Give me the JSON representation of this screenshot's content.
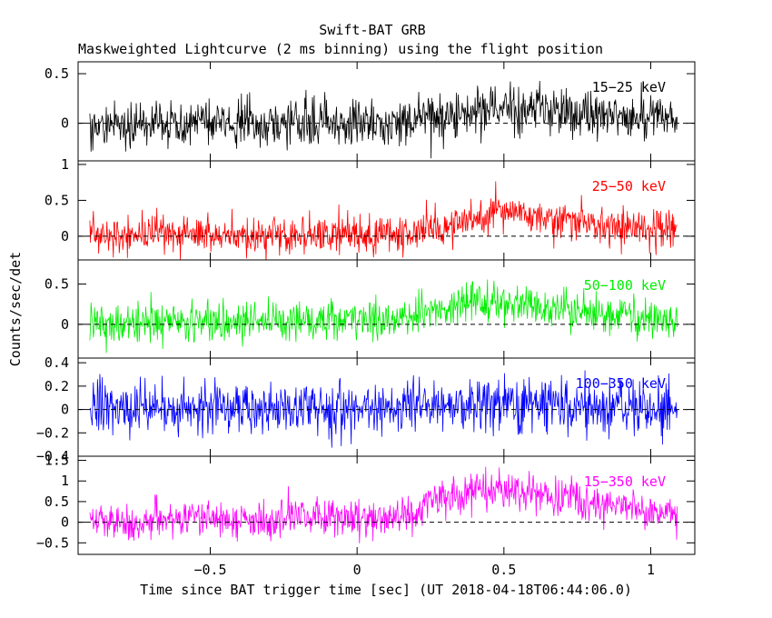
{
  "chart_data": {
    "type": "line",
    "title": "Swift-BAT GRB",
    "subtitle": "Maskweighted Lightcurve (2 ms binning) using the flight position",
    "xlabel": "Time since BAT trigger time [sec] (UT 2018-04-18T06:44:06.0)",
    "ylabel": "Counts/sec/det",
    "xlim": [
      -0.95,
      1.15
    ],
    "x_ticks": [
      {
        "v": -0.5,
        "label": "−0.5"
      },
      {
        "v": 0,
        "label": "0"
      },
      {
        "v": 0.5,
        "label": "0.5"
      },
      {
        "v": 1,
        "label": "1"
      }
    ],
    "x_range_data": [
      -0.91,
      1.09
    ],
    "bin_width": 0.002,
    "grid": false,
    "series": [
      {
        "name": "15−25 keV",
        "color": "#000000",
        "ylim": [
          -0.38,
          0.62
        ],
        "y_ticks": [
          {
            "v": 0,
            "label": "0"
          },
          {
            "v": 0.5,
            "label": "0.5"
          }
        ],
        "profile": [
          [
            -0.91,
            0.0
          ],
          [
            0.1,
            0.0
          ],
          [
            0.3,
            0.08
          ],
          [
            0.5,
            0.14
          ],
          [
            0.75,
            0.1
          ],
          [
            1.09,
            0.05
          ]
        ],
        "noise_sd": 0.12
      },
      {
        "name": "25−50 keV",
        "color": "#ff0000",
        "ylim": [
          -0.33,
          1.05
        ],
        "y_ticks": [
          {
            "v": 0,
            "label": "0"
          },
          {
            "v": 0.5,
            "label": "0.5"
          },
          {
            "v": 1,
            "label": "1"
          }
        ],
        "profile": [
          [
            -0.91,
            0.02
          ],
          [
            0.2,
            0.03
          ],
          [
            0.35,
            0.2
          ],
          [
            0.45,
            0.35
          ],
          [
            0.6,
            0.28
          ],
          [
            0.8,
            0.18
          ],
          [
            1.09,
            0.08
          ]
        ],
        "noise_sd": 0.13
      },
      {
        "name": "50−100 keV",
        "color": "#00ee00",
        "ylim": [
          -0.42,
          0.8
        ],
        "y_ticks": [
          {
            "v": 0,
            "label": "0"
          },
          {
            "v": 0.5,
            "label": "0.5"
          }
        ],
        "profile": [
          [
            -0.91,
            0.02
          ],
          [
            0.15,
            0.04
          ],
          [
            0.3,
            0.2
          ],
          [
            0.4,
            0.3
          ],
          [
            0.55,
            0.25
          ],
          [
            0.8,
            0.14
          ],
          [
            1.09,
            0.05
          ]
        ],
        "noise_sd": 0.12
      },
      {
        "name": "100−350 keV",
        "color": "#0000ff",
        "ylim": [
          -0.4,
          0.44
        ],
        "y_ticks": [
          {
            "v": -0.4,
            "label": "−0.4"
          },
          {
            "v": -0.2,
            "label": "−0.2"
          },
          {
            "v": 0,
            "label": "0"
          },
          {
            "v": 0.2,
            "label": "0.2"
          },
          {
            "v": 0.4,
            "label": "0.4"
          }
        ],
        "profile": [
          [
            -0.91,
            0.0
          ],
          [
            0.25,
            0.01
          ],
          [
            0.45,
            0.05
          ],
          [
            0.7,
            0.03
          ],
          [
            1.09,
            0.0
          ]
        ],
        "noise_sd": 0.11
      },
      {
        "name": "15−350 keV",
        "color": "#ff00ff",
        "ylim": [
          -0.78,
          1.6
        ],
        "y_ticks": [
          {
            "v": -0.5,
            "label": "−0.5"
          },
          {
            "v": 0,
            "label": "0"
          },
          {
            "v": 0.5,
            "label": "0.5"
          },
          {
            "v": 1,
            "label": "1"
          },
          {
            "v": 1.5,
            "label": "1.5"
          }
        ],
        "profile": [
          [
            -0.91,
            0.05
          ],
          [
            0.15,
            0.1
          ],
          [
            0.28,
            0.6
          ],
          [
            0.45,
            0.8
          ],
          [
            0.7,
            0.6
          ],
          [
            0.9,
            0.35
          ],
          [
            1.09,
            0.2
          ]
        ],
        "noise_sd": 0.22
      }
    ]
  }
}
